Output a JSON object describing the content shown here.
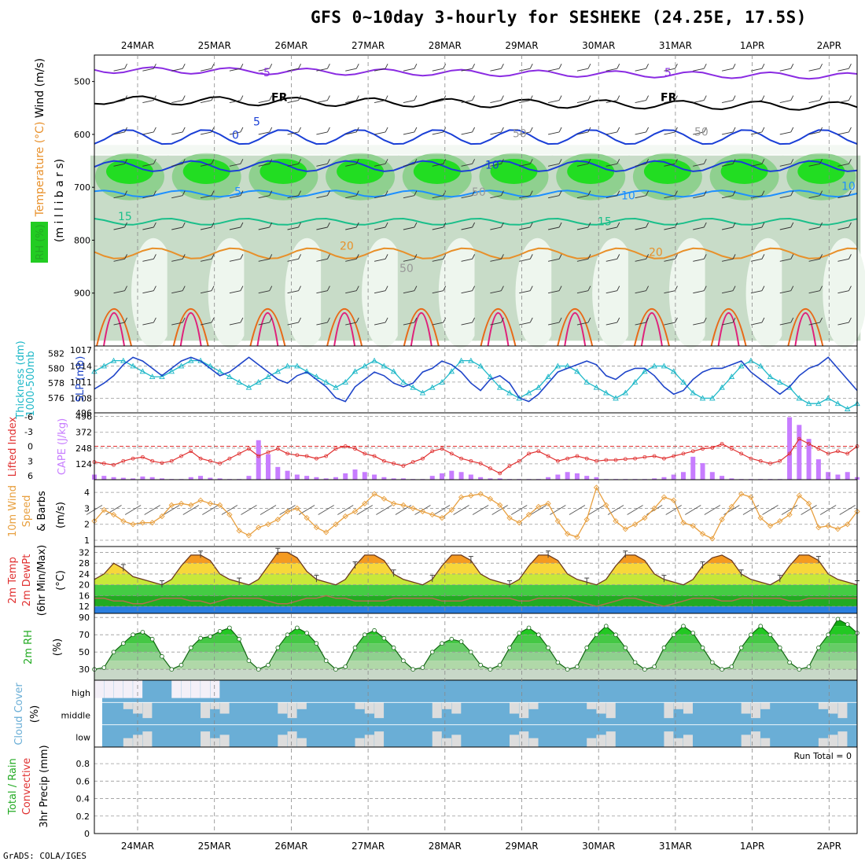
{
  "title": "GFS 0~10day 3-hourly for SESHEKE (24.25E, 17.5S)",
  "footer": "GrADS: COLA/IGES",
  "colors": {
    "purple": "#8a2be2",
    "black": "#000000",
    "blue": "#1a3fd6",
    "lightblue": "#1e90ff",
    "teal": "#1abf8a",
    "orange": "#e8902a",
    "darkorange": "#e86a18",
    "magenta": "#e0207a",
    "slp": "#1fb8c8",
    "thick": "#1f45c9",
    "li": "#e03030",
    "cape": "#c77dff",
    "wind10": "#e8a040",
    "rh": "#22bb22",
    "cloud": "#6aaed6",
    "cloudgap": "#dddddd"
  },
  "chart_data": {
    "type": "meteogram",
    "dates": [
      "24MAR",
      "25MAR",
      "26MAR",
      "27MAR",
      "28MAR",
      "29MAR",
      "30MAR",
      "31MAR",
      "1APR",
      "2APR"
    ],
    "time_steps": 80,
    "panels": {
      "upper_air": {
        "ylabels": [
          {
            "text": "Wind (m/s)",
            "color": "#000000"
          },
          {
            "text": "Temperature (°C)",
            "color": "#e8902a"
          },
          {
            "text": "RH (%)",
            "color": "#22aa22"
          }
        ],
        "axis_label": "(m i l l i b a r s)",
        "yticks": [
          500,
          600,
          700,
          800,
          900
        ],
        "ylim": [
          450,
          1000
        ],
        "isotherms": [
          {
            "label": "-5",
            "color": "#8a2be2",
            "mean": 478,
            "amp": 6
          },
          {
            "label": "FR",
            "color": "#000000",
            "mean": 535,
            "amp": 8
          },
          {
            "label": "0",
            "color": "#1a3fd6",
            "mean": 605,
            "amp": 14
          },
          {
            "label": "5",
            "color": "#1a3fd6",
            "mean": 660,
            "amp": 10
          },
          {
            "label": "10",
            "color": "#1e90ff",
            "mean": 712,
            "amp": 6
          },
          {
            "label": "15",
            "color": "#1abf8a",
            "mean": 765,
            "amp": 6
          },
          {
            "label": "20",
            "color": "#e8902a",
            "mean": 825,
            "amp": 10
          }
        ],
        "contour_labels": [
          "-5",
          "5",
          "FR",
          "FR",
          "0",
          "5",
          "10",
          "5",
          "10",
          "10",
          "15",
          "15",
          "20",
          "20",
          "50",
          "50",
          "50",
          "50"
        ]
      },
      "slp_thickness": {
        "ylabel_left": "1000-500mb Thickness (dm)",
        "ylabel_right": "SLP (mb)",
        "yticks_left": [
          576,
          578,
          580,
          582
        ],
        "yticks_right": [
          1008,
          1011,
          1014,
          1017
        ],
        "slp": [
          1013,
          1014,
          1015,
          1015,
          1014,
          1013,
          1012,
          1012,
          1013,
          1014,
          1015,
          1015,
          1014,
          1013,
          1012,
          1011,
          1010,
          1011,
          1012,
          1013,
          1014,
          1014,
          1013,
          1012,
          1011,
          1010,
          1011,
          1013,
          1014,
          1015,
          1014,
          1013,
          1011,
          1010,
          1009,
          1010,
          1011,
          1013,
          1015,
          1015,
          1014,
          1012,
          1010,
          1009,
          1008,
          1009,
          1010,
          1012,
          1014,
          1014,
          1013,
          1011,
          1010,
          1009,
          1008,
          1009,
          1011,
          1013,
          1014,
          1014,
          1013,
          1011,
          1009,
          1008,
          1008,
          1010,
          1012,
          1014,
          1015,
          1014,
          1012,
          1011,
          1010,
          1008,
          1007,
          1007,
          1008,
          1007,
          1006,
          1007
        ],
        "thickness": [
          577.2,
          578.0,
          579.0,
          580.5,
          581.5,
          581.0,
          580.0,
          579.0,
          580.0,
          581.0,
          581.5,
          581.0,
          580.0,
          579.0,
          579.5,
          580.5,
          581.5,
          580.5,
          579.5,
          578.5,
          578.0,
          579.0,
          579.5,
          578.5,
          577.5,
          576.0,
          575.5,
          577.5,
          578.5,
          579.5,
          579.0,
          578.0,
          577.5,
          578.0,
          579.5,
          580.0,
          581.0,
          580.5,
          579.5,
          578.0,
          577.0,
          578.5,
          579.0,
          578.0,
          576.0,
          575.5,
          576.5,
          578.0,
          579.5,
          580.0,
          580.5,
          581.0,
          580.5,
          579.0,
          578.5,
          579.5,
          580.0,
          580.0,
          579.0,
          577.5,
          576.5,
          577.0,
          578.5,
          579.5,
          580.0,
          580.0,
          580.5,
          581.0,
          579.5,
          578.5,
          577.5,
          576.5,
          577.5,
          579.0,
          580.0,
          580.5,
          581.5,
          580.0,
          578.5,
          577.0
        ]
      },
      "li_cape": {
        "ylabel_left": "Lifted Index",
        "ylabel_right": "CAPE (J/kg)",
        "yticks_left": [
          -6,
          -3,
          0,
          3,
          6
        ],
        "yticks_right": [
          124,
          248,
          372,
          496
        ],
        "lifted_index": [
          3.2,
          3.5,
          3.8,
          3.0,
          2.5,
          2.2,
          3.0,
          3.4,
          3.0,
          2.0,
          1.0,
          2.5,
          3.0,
          3.5,
          2.5,
          1.5,
          0.5,
          2.0,
          1.2,
          0.5,
          1.5,
          1.8,
          2.0,
          2.5,
          2.0,
          0.5,
          0,
          0.5,
          1.5,
          2.0,
          3.0,
          3.5,
          4.0,
          3.2,
          2.5,
          1.0,
          0.5,
          1.5,
          2.5,
          3.0,
          3.5,
          4.5,
          5.5,
          4.0,
          3.0,
          1.5,
          1.0,
          2.0,
          3.0,
          2.5,
          2.0,
          2.5,
          3.0,
          2.8,
          2.8,
          2.6,
          2.5,
          2.2,
          2.0,
          2.5,
          2.0,
          1.5,
          1.0,
          0.5,
          0.3,
          -0.5,
          0.5,
          1.5,
          2.5,
          3.0,
          3.5,
          3.0,
          1.5,
          -1.5,
          -0.5,
          0.5,
          1.5,
          1.0,
          1.5,
          0
        ],
        "cape": [
          40,
          30,
          20,
          15,
          10,
          25,
          20,
          10,
          5,
          5,
          20,
          30,
          15,
          10,
          5,
          5,
          30,
          310,
          200,
          100,
          70,
          40,
          30,
          20,
          10,
          20,
          50,
          80,
          60,
          40,
          20,
          10,
          10,
          5,
          5,
          30,
          50,
          70,
          60,
          40,
          20,
          10,
          10,
          5,
          5,
          5,
          5,
          20,
          40,
          60,
          50,
          30,
          20,
          5,
          5,
          5,
          5,
          5,
          10,
          20,
          40,
          60,
          180,
          130,
          60,
          30,
          10,
          5,
          5,
          5,
          5,
          5,
          490,
          430,
          320,
          160,
          60,
          40,
          60,
          20
        ]
      },
      "wind10": {
        "ylabel": "10m Wind Speed & Barbs",
        "unit": "(m/s)",
        "yticks": [
          1,
          2,
          3,
          4
        ],
        "speed": [
          2.2,
          2.9,
          2.6,
          2.2,
          2.0,
          2.1,
          2.1,
          2.5,
          3.2,
          3.3,
          3.2,
          3.5,
          3.3,
          3.2,
          2.6,
          1.6,
          1.3,
          1.8,
          2.0,
          2.3,
          2.8,
          3.0,
          2.4,
          1.8,
          1.5,
          2.0,
          2.5,
          2.8,
          3.3,
          3.9,
          3.6,
          3.3,
          3.2,
          3.0,
          2.8,
          2.6,
          2.4,
          2.9,
          3.7,
          3.8,
          3.9,
          3.6,
          3.2,
          2.4,
          2.1,
          2.6,
          3.1,
          3.3,
          2.2,
          1.4,
          1.2,
          2.3,
          4.3,
          3.2,
          2.2,
          1.7,
          2.0,
          2.4,
          3.0,
          3.7,
          3.5,
          2.1,
          1.9,
          1.4,
          1.1,
          2.3,
          3.1,
          3.9,
          3.7,
          2.4,
          1.9,
          2.2,
          2.6,
          3.8,
          3.3,
          1.8,
          1.9,
          1.7,
          2.0,
          2.8
        ]
      },
      "temp2m": {
        "ylabel": "2m Temp 2m DewPt (6hr Min/Max)",
        "unit": "(°C)",
        "yticks": [
          12,
          16,
          20,
          24,
          28,
          32
        ],
        "temp": [
          22,
          24,
          28,
          26,
          23,
          22,
          21,
          20,
          22,
          27,
          31,
          31,
          29,
          24,
          22,
          21,
          20,
          22,
          27,
          32,
          32,
          30,
          25,
          22,
          21,
          20,
          22,
          27,
          31,
          31,
          29,
          24,
          22,
          21,
          20,
          22,
          27,
          31,
          31,
          29,
          24,
          22,
          21,
          20,
          22,
          27,
          31,
          31,
          29,
          24,
          22,
          21,
          20,
          22,
          27,
          31,
          31,
          29,
          24,
          22,
          21,
          20,
          22,
          27,
          30,
          31,
          29,
          24,
          22,
          21,
          20,
          22,
          27,
          31,
          31,
          29,
          24,
          22,
          21,
          20
        ],
        "dewpt": [
          15,
          15,
          14,
          14,
          13,
          13,
          14,
          15,
          15,
          15,
          14,
          14,
          13,
          14,
          15,
          15,
          15,
          15,
          14,
          13,
          13,
          14,
          15,
          15,
          16,
          15,
          15,
          14,
          14,
          14,
          14,
          15,
          15,
          15,
          15,
          15,
          14,
          14,
          14,
          15,
          15,
          15,
          15,
          15,
          14,
          14,
          15,
          15,
          15,
          15,
          14,
          13,
          12,
          13,
          14,
          15,
          15,
          14,
          13,
          12,
          13,
          14,
          15,
          15,
          15,
          14,
          14,
          15,
          15,
          15,
          15,
          15,
          14,
          14,
          15,
          15,
          15,
          15,
          15,
          15
        ]
      },
      "rh2m": {
        "ylabel": "2m RH",
        "unit": "(%)",
        "yticks": [
          30,
          50,
          70,
          90
        ],
        "rh": [
          30,
          32,
          50,
          60,
          70,
          73,
          65,
          45,
          30,
          35,
          55,
          66,
          68,
          74,
          78,
          65,
          40,
          30,
          35,
          55,
          70,
          78,
          72,
          60,
          40,
          30,
          33,
          55,
          70,
          75,
          66,
          55,
          40,
          30,
          32,
          50,
          60,
          65,
          62,
          50,
          35,
          30,
          35,
          55,
          72,
          78,
          70,
          55,
          38,
          30,
          33,
          55,
          70,
          80,
          70,
          55,
          38,
          30,
          33,
          55,
          70,
          80,
          72,
          55,
          38,
          30,
          33,
          55,
          70,
          80,
          70,
          55,
          38,
          30,
          33,
          55,
          70,
          88,
          82,
          72
        ]
      },
      "cloud": {
        "ylabel": "Cloud Cover",
        "unit": "(%)",
        "levels": [
          "high",
          "middle",
          "low"
        ]
      },
      "precip": {
        "ylabel_parts": [
          {
            "text": "Total / Rain",
            "color": "#22aa22"
          },
          {
            "text": "Convective",
            "color": "#e03030"
          }
        ],
        "ylabel": "3hr Precip (mm)",
        "yticks": [
          0,
          0.2,
          0.4,
          0.6,
          0.8
        ],
        "run_total": "Run Total = 0",
        "values": []
      }
    }
  }
}
